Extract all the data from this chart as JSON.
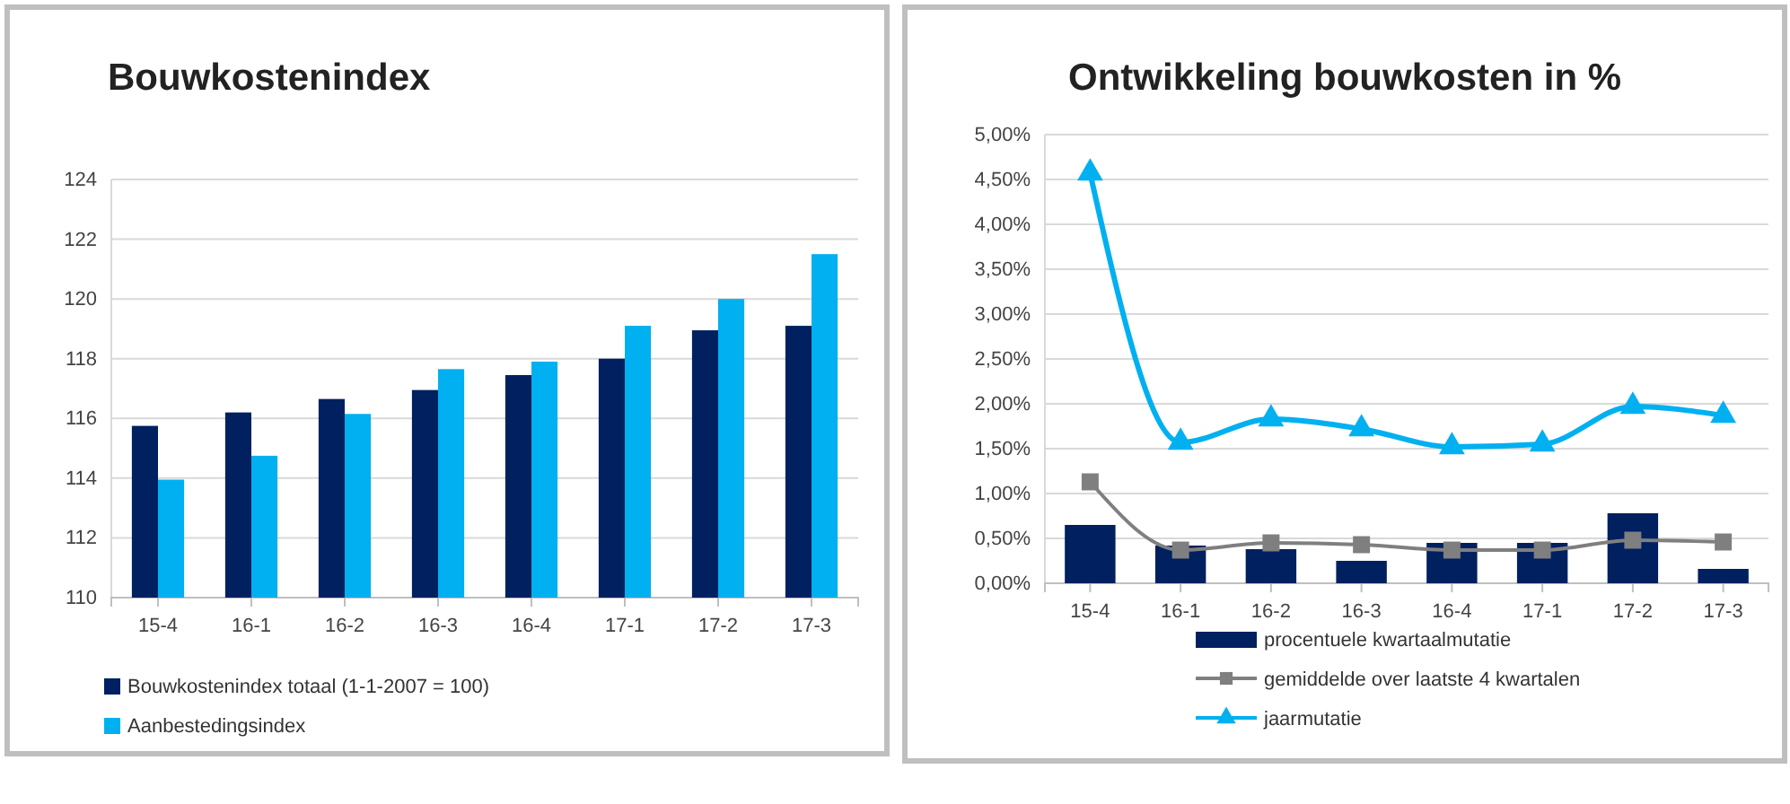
{
  "chart_data": [
    {
      "type": "bar",
      "title": "Bouwkostenindex",
      "categories": [
        "15-4",
        "16-1",
        "16-2",
        "16-3",
        "16-4",
        "17-1",
        "17-2",
        "17-3"
      ],
      "series": [
        {
          "name": "Bouwkostenindex totaal (1-1-2007 = 100)",
          "color": "#002060",
          "values": [
            115.75,
            116.2,
            116.65,
            116.95,
            117.45,
            118.0,
            118.95,
            119.1
          ]
        },
        {
          "name": "Aanbestedingsindex",
          "color": "#00b0f0",
          "values": [
            113.95,
            114.75,
            116.15,
            117.65,
            117.9,
            119.1,
            120.0,
            121.5
          ]
        }
      ],
      "ylim": [
        110,
        124
      ],
      "yticks": [
        110,
        112,
        114,
        116,
        118,
        120,
        122,
        124
      ],
      "grid": "y",
      "legend": "bottom"
    },
    {
      "type": "bar",
      "title": "Ontwikkeling bouwkosten in %",
      "categories": [
        "15-4",
        "16-1",
        "16-2",
        "16-3",
        "16-4",
        "17-1",
        "17-2",
        "17-3"
      ],
      "series": [
        {
          "name": "procentuele kwartaalmutatie",
          "type": "bar",
          "color": "#002060",
          "values": [
            0.65,
            0.42,
            0.38,
            0.25,
            0.45,
            0.45,
            0.78,
            0.16
          ]
        },
        {
          "name": "gemiddelde over laatste 4 kwartalen",
          "type": "line",
          "marker": "square",
          "color": "#7f7f7f",
          "values": [
            1.13,
            0.37,
            0.45,
            0.43,
            0.37,
            0.37,
            0.48,
            0.46
          ]
        },
        {
          "name": "jaarmutatie",
          "type": "line",
          "marker": "triangle",
          "color": "#00b0f0",
          "values": [
            4.57,
            1.57,
            1.83,
            1.72,
            1.52,
            1.55,
            1.97,
            1.87
          ]
        }
      ],
      "ylim": [
        0,
        5
      ],
      "yticks": [
        {
          "value": 0,
          "label": "0,00%"
        },
        {
          "value": 0.5,
          "label": "0,50%"
        },
        {
          "value": 1,
          "label": "1,00%"
        },
        {
          "value": 1.5,
          "label": "1,50%"
        },
        {
          "value": 2,
          "label": "2,00%"
        },
        {
          "value": 2.5,
          "label": "2,50%"
        },
        {
          "value": 3,
          "label": "3,00%"
        },
        {
          "value": 3.5,
          "label": "3,50%"
        },
        {
          "value": 4,
          "label": "4,00%"
        },
        {
          "value": 4.5,
          "label": "4,50%"
        },
        {
          "value": 5,
          "label": "5,00%"
        }
      ],
      "grid": "y",
      "legend": "bottom"
    }
  ]
}
